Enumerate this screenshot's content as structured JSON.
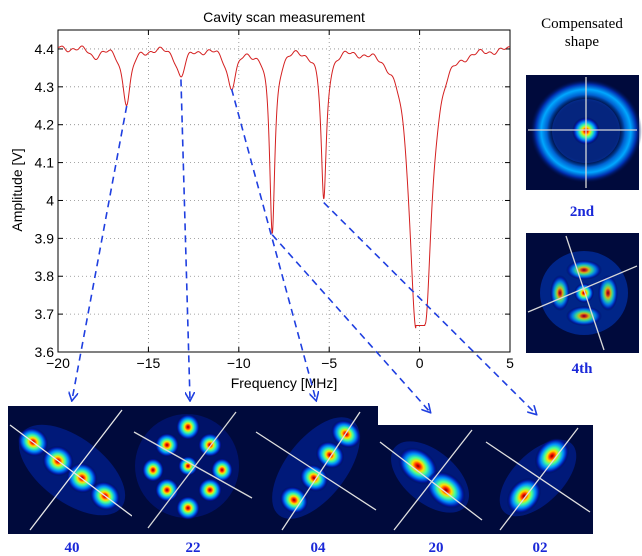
{
  "chart_data": {
    "type": "line",
    "title": "Cavity scan measurement",
    "xlabel": "Frequency [MHz]",
    "ylabel": "Amplitude [V]",
    "xlim": [
      -20,
      5
    ],
    "ylim": [
      3.6,
      4.45
    ],
    "grid": true,
    "x_ticks": [
      -20,
      -15,
      -10,
      -5,
      0,
      5
    ],
    "y_ticks": [
      3.6,
      3.7,
      3.8,
      3.9,
      4,
      4.1,
      4.2,
      4.3,
      4.4
    ],
    "x_tick_labels": [
      "−20",
      "−15",
      "−10",
      "−5",
      "0",
      "5"
    ],
    "y_tick_labels": [
      "3.6",
      "3.7",
      "3.8",
      "3.9",
      "4",
      "4.1",
      "4.2",
      "4.3",
      "4.4"
    ],
    "series_color": "#d42020",
    "baseline": 4.405,
    "dips": [
      {
        "x": -18.0,
        "min": 4.385,
        "width": 0.35
      },
      {
        "x": -16.2,
        "min": 4.26,
        "width": 0.28
      },
      {
        "x": -13.2,
        "min": 4.33,
        "width": 0.28
      },
      {
        "x": -10.4,
        "min": 4.305,
        "width": 0.32
      },
      {
        "x": -8.15,
        "min": 3.92,
        "width": 0.18
      },
      {
        "x": -5.3,
        "min": 4.005,
        "width": 0.18
      },
      {
        "x": 0.0,
        "min": 3.67,
        "width": 0.45,
        "flat_from": -0.2,
        "flat_to": 0.3
      }
    ],
    "mode_labels": [
      "40",
      "22",
      "04",
      "20",
      "02"
    ],
    "arrow_color": "#1f3fe0",
    "label_color": "#1a28d8"
  },
  "side_panel": {
    "title_line1": "Compensated",
    "title_line2": "shape",
    "labels": [
      "2nd",
      "4th"
    ]
  }
}
